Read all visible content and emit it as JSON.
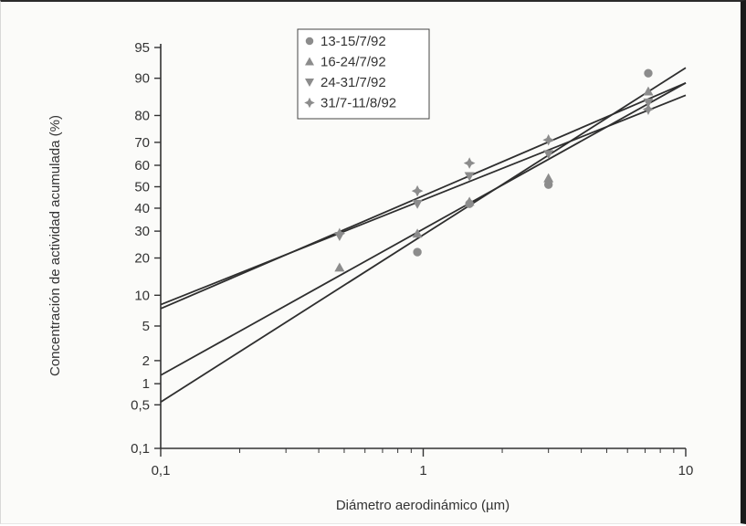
{
  "chart_data": {
    "type": "scatter",
    "title": "",
    "xlabel": "Diámetro aerodinámico (µm)",
    "ylabel": "Concentración de actividad acumulada (%)",
    "x_scale": "log",
    "y_scale": "probability",
    "xlim": [
      0.1,
      10
    ],
    "ylim": [
      0.1,
      95
    ],
    "x_ticks": [
      0.1,
      1,
      10
    ],
    "x_tick_labels": [
      "0,1",
      "1",
      "10"
    ],
    "y_ticks": [
      0.1,
      0.5,
      1,
      2,
      5,
      10,
      20,
      30,
      40,
      50,
      60,
      70,
      80,
      90,
      95
    ],
    "y_tick_labels": [
      "0,1",
      "0,5",
      "1",
      "2",
      "5",
      "10",
      "20",
      "30",
      "40",
      "50",
      "60",
      "70",
      "80",
      "90",
      "95"
    ],
    "grid": false,
    "legend_position": "top-center",
    "series": [
      {
        "name": "13-15/7/92",
        "marker": "circle",
        "x": [
          0.95,
          1.5,
          3.0,
          7.2
        ],
        "y": [
          22,
          42,
          51,
          91
        ]
      },
      {
        "name": "16-24/7/92",
        "marker": "triangle-up",
        "x": [
          0.48,
          0.95,
          1.5,
          3.0,
          7.2
        ],
        "y": [
          17,
          29,
          43,
          54,
          87
        ]
      },
      {
        "name": "24-31/7/92",
        "marker": "triangle-down",
        "x": [
          0.48,
          0.95,
          1.5,
          3.0,
          7.2
        ],
        "y": [
          28,
          42,
          55,
          65,
          84
        ]
      },
      {
        "name": "31/7-11/8/92",
        "marker": "diamond",
        "x": [
          0.48,
          0.95,
          1.5,
          3.0,
          7.2
        ],
        "y": [
          29,
          48,
          61,
          71,
          82
        ]
      }
    ],
    "fit_lines": [
      {
        "x": [
          0.1,
          10
        ],
        "y": [
          0.55,
          92
        ]
      },
      {
        "x": [
          0.1,
          10
        ],
        "y": [
          1.3,
          89
        ]
      },
      {
        "x": [
          0.1,
          10
        ],
        "y": [
          7.5,
          89
        ]
      },
      {
        "x": [
          0.1,
          10
        ],
        "y": [
          8.2,
          86
        ]
      }
    ],
    "colors": {
      "marker": "#8c8c8c",
      "fit_line": "#2e2e2e",
      "axis": "#333333",
      "text": "#333333"
    }
  }
}
